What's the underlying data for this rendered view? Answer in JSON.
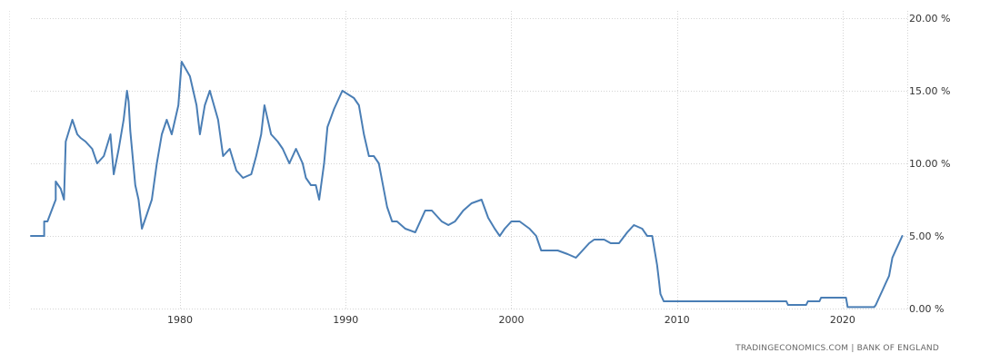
{
  "chart_data": {
    "type": "line",
    "title": "",
    "xlabel": "",
    "ylabel": "",
    "xlim": [
      1971.0,
      2023.9
    ],
    "ylim": [
      0,
      20
    ],
    "grid": true,
    "x_ticks": [
      1980,
      1990,
      2000,
      2010,
      2020
    ],
    "x_tick_labels": [
      "1980",
      "1990",
      "2000",
      "2010",
      "2020"
    ],
    "y_ticks": [
      0,
      5,
      10,
      15,
      20
    ],
    "y_tick_labels": [
      "0.00 %",
      "5.00 %",
      "10.00 %",
      "15.00 %",
      "20.00 %"
    ],
    "line_color": "#4a7eb5",
    "series": [
      {
        "x": [
          1971.0,
          1971.8,
          1971.8,
          1972.0,
          1972.5,
          1972.5,
          1972.8,
          1973.0,
          1973.1,
          1973.5,
          1973.8,
          1974.0,
          1974.0,
          1974.3,
          1974.7,
          1975.0,
          1975.4,
          1975.8,
          1976.0,
          1976.3,
          1976.6,
          1976.8,
          1976.9,
          1977.0,
          1977.3,
          1977.5,
          1977.7,
          1978.0,
          1978.3,
          1978.6,
          1978.9,
          1979.2,
          1979.5,
          1979.9,
          1980.1,
          1980.6,
          1981.0,
          1981.2,
          1981.5,
          1981.8,
          1982.3,
          1982.6,
          1983.0,
          1983.4,
          1983.8,
          1984.3,
          1984.6,
          1984.9,
          1985.1,
          1985.5,
          1985.9,
          1986.2,
          1986.6,
          1987.0,
          1987.4,
          1987.6,
          1987.9,
          1988.2,
          1988.4,
          1988.7,
          1988.9,
          1989.3,
          1989.8,
          1990.5,
          1990.8,
          1991.1,
          1991.4,
          1991.7,
          1992.0,
          1992.5,
          1992.8,
          1993.1,
          1993.6,
          1994.2,
          1994.8,
          1995.2,
          1995.8,
          1996.2,
          1996.6,
          1997.1,
          1997.6,
          1998.2,
          1998.6,
          1999.0,
          1999.3,
          1999.6,
          2000.0,
          2000.5,
          2001.1,
          2001.5,
          2001.8,
          2002.0,
          2002.8,
          2003.4,
          2003.9,
          2004.3,
          2004.7,
          2005.0,
          2005.6,
          2006.0,
          2006.5,
          2007.0,
          2007.4,
          2007.9,
          2008.2,
          2008.5,
          2008.8,
          2008.9,
          2009.0,
          2009.2,
          2016.6,
          2016.7,
          2017.8,
          2017.9,
          2018.6,
          2018.7,
          2020.2,
          2020.3,
          2021.9,
          2022.0,
          2022.2,
          2022.4,
          2022.6,
          2022.8,
          2023.0,
          2023.2,
          2023.4,
          2023.6
        ],
        "y": [
          5.0,
          5.0,
          6.0,
          6.0,
          7.5,
          8.75,
          8.25,
          7.5,
          11.5,
          13.0,
          12.0,
          11.75,
          11.75,
          11.5,
          11.0,
          10.0,
          10.5,
          12.0,
          9.25,
          11.0,
          13.0,
          15.0,
          14.25,
          12.25,
          8.5,
          7.5,
          5.5,
          6.5,
          7.5,
          10.0,
          12.0,
          13.0,
          12.0,
          14.0,
          17.0,
          16.0,
          14.0,
          12.0,
          14.0,
          15.0,
          13.0,
          10.5,
          11.0,
          9.5,
          9.0,
          9.25,
          10.5,
          12.0,
          14.0,
          12.0,
          11.5,
          11.0,
          10.0,
          11.0,
          10.0,
          9.0,
          8.5,
          8.5,
          7.5,
          10.0,
          12.5,
          13.75,
          15.0,
          14.5,
          14.0,
          12.0,
          10.5,
          10.5,
          10.0,
          7.0,
          6.0,
          6.0,
          5.5,
          5.25,
          6.75,
          6.75,
          6.0,
          5.75,
          6.0,
          6.75,
          7.25,
          7.5,
          6.25,
          5.5,
          5.0,
          5.5,
          6.0,
          6.0,
          5.5,
          5.0,
          4.0,
          4.0,
          4.0,
          3.75,
          3.5,
          4.0,
          4.5,
          4.75,
          4.75,
          4.5,
          4.5,
          5.25,
          5.75,
          5.5,
          5.0,
          5.0,
          3.0,
          2.0,
          1.0,
          0.5,
          0.5,
          0.25,
          0.25,
          0.5,
          0.5,
          0.75,
          0.75,
          0.1,
          0.1,
          0.25,
          0.75,
          1.25,
          1.75,
          2.25,
          3.5,
          4.0,
          4.5,
          5.0
        ]
      }
    ]
  },
  "footer": {
    "source": "TRADINGECONOMICS.COM  |  BANK OF ENGLAND"
  }
}
